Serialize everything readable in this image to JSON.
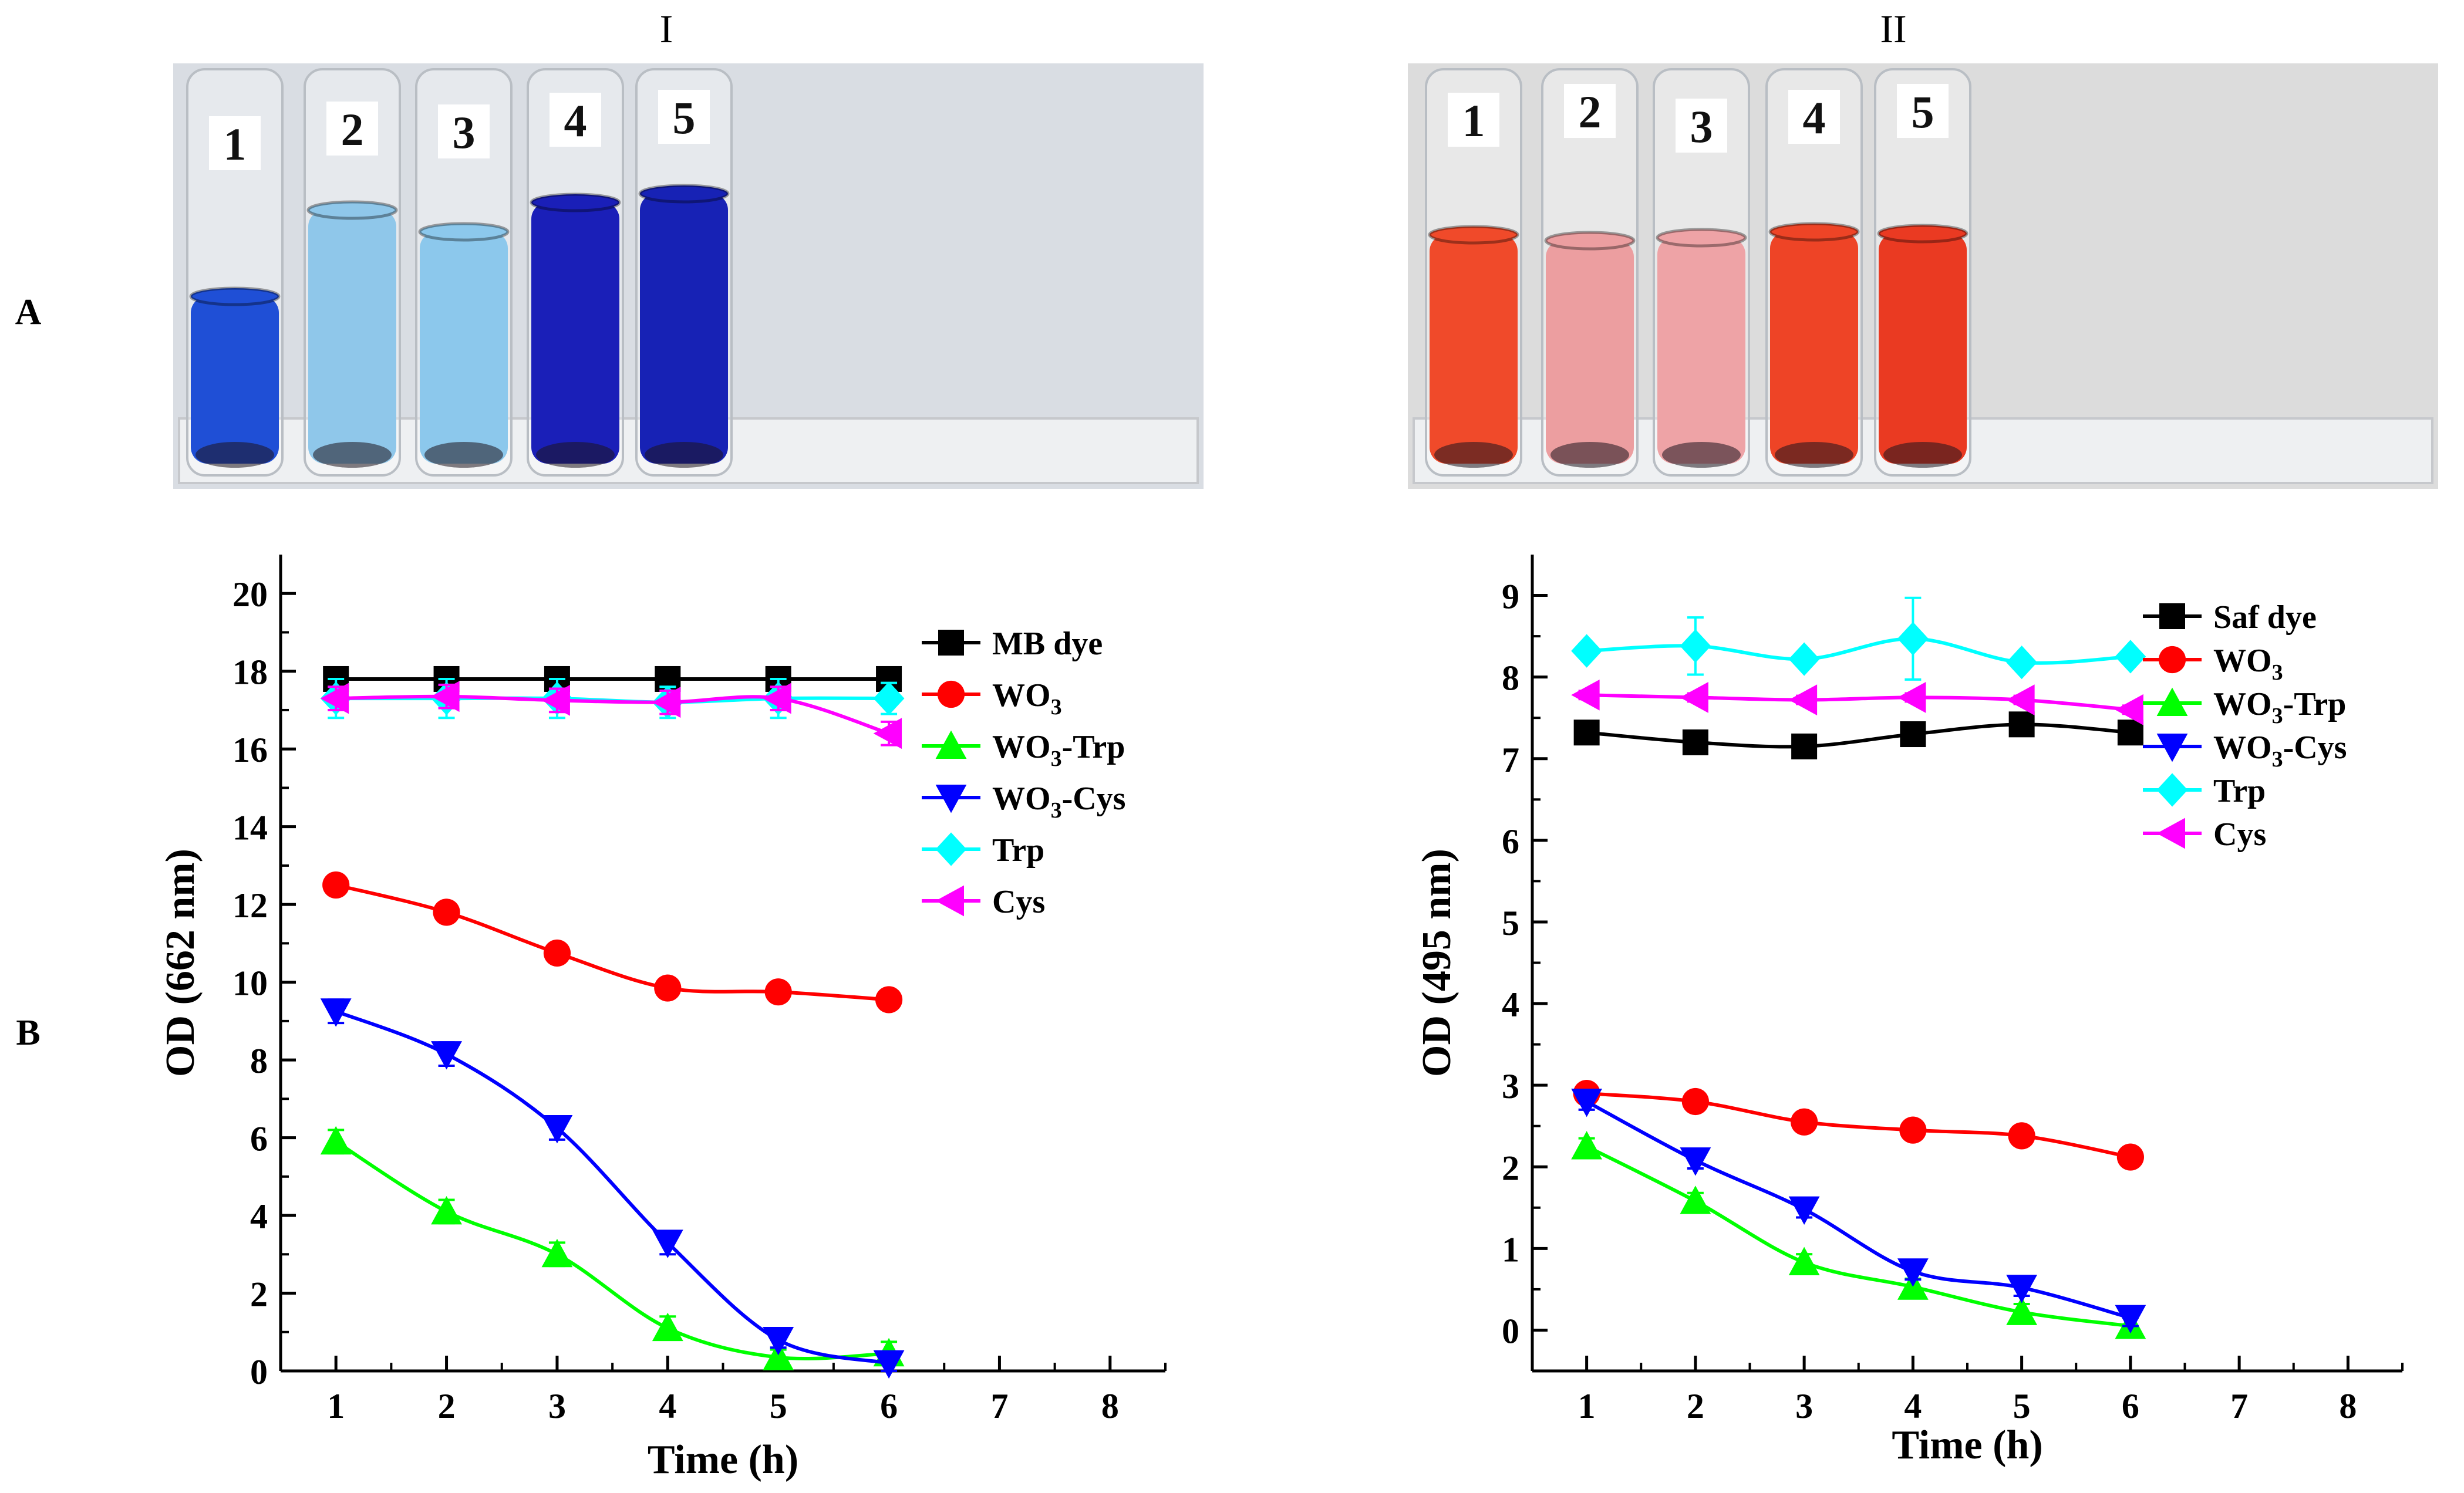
{
  "figure": {
    "row_labels": [
      "A",
      "B"
    ],
    "column_labels": [
      "I",
      "II"
    ]
  },
  "photos": [
    {
      "name": "photo-mb",
      "tube_numbers": [
        "1",
        "2",
        "3",
        "4",
        "5"
      ],
      "liquid_colors": [
        "#1f4fd6",
        "#8fc7ea",
        "#8cc8ec",
        "#1a1fb8",
        "#1722b5"
      ],
      "background": "#d9dde3"
    },
    {
      "name": "photo-saf",
      "tube_numbers": [
        "1",
        "2",
        "3",
        "4",
        "5"
      ],
      "liquid_colors": [
        "#f04a2a",
        "#ec9ea0",
        "#eea3a6",
        "#ee4426",
        "#ea3a22"
      ],
      "background": "#dcdcdc"
    }
  ],
  "chart_data": [
    {
      "type": "line",
      "name": "chart-mb",
      "title": "",
      "xlabel": "Time (h)",
      "ylabel": "OD (662 nm)",
      "xlim": [
        0.5,
        8.5
      ],
      "ylim": [
        0,
        21
      ],
      "xticks": [
        1,
        2,
        3,
        4,
        5,
        6,
        7,
        8
      ],
      "yticks": [
        0,
        2,
        4,
        6,
        8,
        10,
        12,
        14,
        16,
        18,
        20
      ],
      "legend_position": "top-right",
      "x": [
        1,
        2,
        3,
        4,
        5,
        6
      ],
      "series": [
        {
          "name": "MB dye",
          "marker": "square",
          "color": "#000000",
          "values": [
            17.8,
            17.8,
            17.8,
            17.8,
            17.8,
            17.8
          ],
          "errors": [
            0.15,
            0.15,
            0.15,
            0.15,
            0.15,
            0.15
          ]
        },
        {
          "name": "WO3",
          "marker": "circle",
          "color": "#ff0000",
          "values": [
            12.5,
            11.8,
            10.75,
            9.85,
            9.75,
            9.55
          ],
          "errors": [
            0,
            0,
            0,
            0,
            0,
            0
          ]
        },
        {
          "name": "WO3-Trp",
          "marker": "triangle-up",
          "color": "#00ff00",
          "values": [
            5.9,
            4.1,
            3.0,
            1.1,
            0.35,
            0.45
          ],
          "errors": [
            0.3,
            0.3,
            0.3,
            0.3,
            0.2,
            0.3
          ]
        },
        {
          "name": "WO3-Cys",
          "marker": "triangle-down",
          "color": "#0000ff",
          "values": [
            9.25,
            8.15,
            6.25,
            3.3,
            0.8,
            0.2
          ],
          "errors": [
            0.3,
            0.3,
            0.3,
            0.3,
            0.2,
            0.2
          ]
        },
        {
          "name": "Trp",
          "marker": "diamond",
          "color": "#00ffff",
          "values": [
            17.3,
            17.3,
            17.3,
            17.2,
            17.3,
            17.3
          ],
          "errors": [
            0.5,
            0.5,
            0.5,
            0.4,
            0.5,
            0.4
          ]
        },
        {
          "name": "Cys",
          "marker": "triangle-left",
          "color": "#ff00ff",
          "values": [
            17.3,
            17.35,
            17.25,
            17.2,
            17.3,
            16.4
          ],
          "errors": [
            0.3,
            0.3,
            0.3,
            0.3,
            0.3,
            0.3
          ]
        }
      ]
    },
    {
      "type": "line",
      "name": "chart-saf",
      "title": "",
      "xlabel": "Time (h)",
      "ylabel": "OD (495 nm)",
      "xlim": [
        0.5,
        8.5
      ],
      "ylim": [
        -0.5,
        9.5
      ],
      "xticks": [
        1,
        2,
        3,
        4,
        5,
        6,
        7,
        8
      ],
      "yticks": [
        0,
        1,
        2,
        3,
        4,
        5,
        6,
        7,
        8,
        9
      ],
      "legend_position": "top-right",
      "x": [
        1,
        2,
        3,
        4,
        5,
        6
      ],
      "series": [
        {
          "name": "Saf dye",
          "marker": "square",
          "color": "#000000",
          "values": [
            7.32,
            7.2,
            7.15,
            7.3,
            7.42,
            7.32
          ],
          "errors": [
            0.05,
            0.05,
            0.05,
            0.05,
            0.05,
            0.05
          ]
        },
        {
          "name": "WO3",
          "marker": "circle",
          "color": "#ff0000",
          "values": [
            2.9,
            2.8,
            2.55,
            2.45,
            2.38,
            2.12
          ],
          "errors": [
            0,
            0,
            0,
            0,
            0,
            0
          ]
        },
        {
          "name": "WO3-Trp",
          "marker": "triangle-up",
          "color": "#00ff00",
          "values": [
            2.25,
            1.58,
            0.83,
            0.53,
            0.22,
            0.05
          ],
          "errors": [
            0.1,
            0.1,
            0.1,
            0.1,
            0.1,
            0.1
          ]
        },
        {
          "name": "WO3-Cys",
          "marker": "triangle-down",
          "color": "#0000ff",
          "values": [
            2.8,
            2.08,
            1.48,
            0.72,
            0.52,
            0.15
          ],
          "errors": [
            0.1,
            0.1,
            0.1,
            0.1,
            0.1,
            0.1
          ]
        },
        {
          "name": "Trp",
          "marker": "diamond",
          "color": "#00ffff",
          "values": [
            8.32,
            8.38,
            8.22,
            8.47,
            8.18,
            8.25
          ],
          "errors": [
            0.05,
            0.35,
            0.05,
            0.5,
            0.05,
            0.05
          ]
        },
        {
          "name": "Cys",
          "marker": "triangle-left",
          "color": "#ff00ff",
          "values": [
            7.78,
            7.75,
            7.72,
            7.75,
            7.72,
            7.6
          ],
          "errors": [
            0.05,
            0.05,
            0.05,
            0.05,
            0.05,
            0.05
          ]
        }
      ]
    }
  ]
}
